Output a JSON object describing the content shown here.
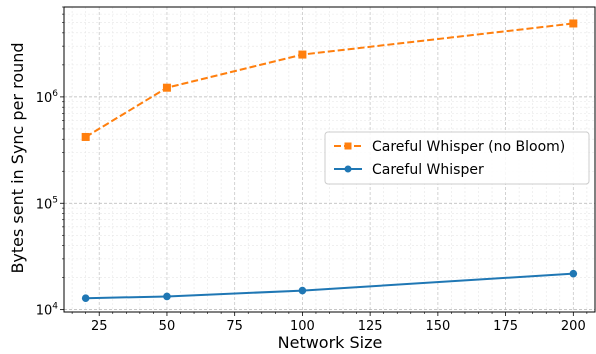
{
  "chart_data": {
    "type": "line",
    "xlabel": "Network Size",
    "ylabel": "Bytes sent in Sync per round",
    "xscale": "linear",
    "yscale": "log",
    "xlim": [
      12,
      208
    ],
    "ylim": [
      9500,
      7000000
    ],
    "xticks": [
      25,
      50,
      75,
      100,
      125,
      150,
      175,
      200
    ],
    "xtick_labels": [
      "25",
      "50",
      "75",
      "100",
      "125",
      "150",
      "175",
      "200"
    ],
    "yticks": [
      10000,
      100000,
      1000000
    ],
    "ytick_labels": [
      {
        "base": "10",
        "exp": "4"
      },
      {
        "base": "10",
        "exp": "5"
      },
      {
        "base": "10",
        "exp": "6"
      }
    ],
    "grid": true,
    "legend_position": "center-right",
    "series": [
      {
        "name": "Careful Whisper (no Bloom)",
        "x": [
          20,
          50,
          100,
          200
        ],
        "values": [
          420000,
          1220000,
          2500000,
          4900000
        ],
        "color": "#ff7f0e",
        "line_style": "dashed",
        "marker": "square"
      },
      {
        "name": "Careful Whisper",
        "x": [
          20,
          50,
          100,
          200
        ],
        "values": [
          12800,
          13300,
          15100,
          21800
        ],
        "color": "#1f77b4",
        "line_style": "solid",
        "marker": "circle"
      }
    ]
  }
}
